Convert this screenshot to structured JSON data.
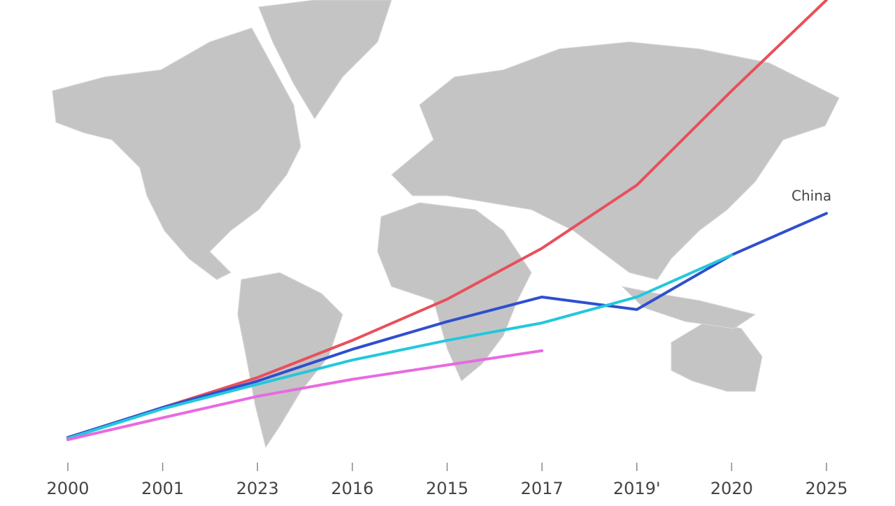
{
  "chart_data": {
    "type": "line",
    "categories": [
      "2000",
      "2001",
      "2023",
      "2016",
      "2015",
      "2017",
      "2019'",
      "2020",
      "2025"
    ],
    "ylim": [
      0,
      100
    ],
    "series": [
      {
        "color": "#e8505b",
        "values": [
          2,
          8.9,
          15.6,
          23.9,
          33.1,
          44.5,
          58.6,
          79.7,
          100
        ]
      },
      {
        "name": "China",
        "color": "#2f4fcf",
        "values": [
          2.2,
          8.9,
          14.8,
          21.9,
          28.1,
          33.6,
          30.8,
          43,
          52.3
        ]
      },
      {
        "color": "#22c8dc",
        "values": [
          2,
          8.6,
          14.1,
          19.5,
          23.9,
          27.8,
          33.6,
          43,
          null
        ]
      },
      {
        "color": "#e86ae0",
        "values": [
          1.7,
          6.6,
          11.4,
          15.2,
          18.4,
          21.6,
          null,
          null,
          null
        ]
      }
    ]
  }
}
